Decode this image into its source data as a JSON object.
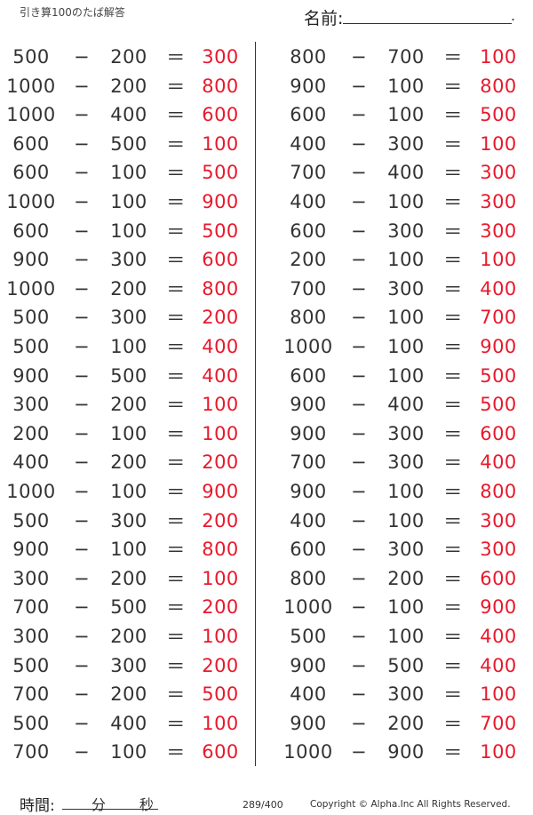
{
  "header": {
    "title": "引き算100のたば解答",
    "name_label": "名前:",
    "name_end": "."
  },
  "operator": "−",
  "equals": "＝",
  "left": [
    [
      "500",
      "200",
      "300"
    ],
    [
      "1000",
      "200",
      "800"
    ],
    [
      "1000",
      "400",
      "600"
    ],
    [
      "600",
      "500",
      "100"
    ],
    [
      "600",
      "100",
      "500"
    ],
    [
      "1000",
      "100",
      "900"
    ],
    [
      "600",
      "100",
      "500"
    ],
    [
      "900",
      "300",
      "600"
    ],
    [
      "1000",
      "200",
      "800"
    ],
    [
      "500",
      "300",
      "200"
    ],
    [
      "500",
      "100",
      "400"
    ],
    [
      "900",
      "500",
      "400"
    ],
    [
      "300",
      "200",
      "100"
    ],
    [
      "200",
      "100",
      "100"
    ],
    [
      "400",
      "200",
      "200"
    ],
    [
      "1000",
      "100",
      "900"
    ],
    [
      "500",
      "300",
      "200"
    ],
    [
      "900",
      "100",
      "800"
    ],
    [
      "300",
      "200",
      "100"
    ],
    [
      "700",
      "500",
      "200"
    ],
    [
      "300",
      "200",
      "100"
    ],
    [
      "500",
      "300",
      "200"
    ],
    [
      "700",
      "200",
      "500"
    ],
    [
      "500",
      "400",
      "100"
    ],
    [
      "700",
      "100",
      "600"
    ]
  ],
  "right": [
    [
      "800",
      "700",
      "100"
    ],
    [
      "900",
      "100",
      "800"
    ],
    [
      "600",
      "100",
      "500"
    ],
    [
      "400",
      "300",
      "100"
    ],
    [
      "700",
      "400",
      "300"
    ],
    [
      "400",
      "100",
      "300"
    ],
    [
      "600",
      "300",
      "300"
    ],
    [
      "200",
      "100",
      "100"
    ],
    [
      "700",
      "300",
      "400"
    ],
    [
      "800",
      "100",
      "700"
    ],
    [
      "1000",
      "100",
      "900"
    ],
    [
      "600",
      "100",
      "500"
    ],
    [
      "900",
      "400",
      "500"
    ],
    [
      "900",
      "300",
      "600"
    ],
    [
      "700",
      "300",
      "400"
    ],
    [
      "900",
      "100",
      "800"
    ],
    [
      "400",
      "100",
      "300"
    ],
    [
      "600",
      "300",
      "300"
    ],
    [
      "800",
      "200",
      "600"
    ],
    [
      "1000",
      "100",
      "900"
    ],
    [
      "500",
      "100",
      "400"
    ],
    [
      "900",
      "500",
      "400"
    ],
    [
      "400",
      "300",
      "100"
    ],
    [
      "900",
      "200",
      "700"
    ],
    [
      "1000",
      "900",
      "100"
    ]
  ],
  "footer": {
    "time_label": "時間:",
    "minutes": "分",
    "seconds": "秒",
    "page": "289/400",
    "copyright": "Copyright ©  Alpha.Inc All Rights Reserved."
  },
  "colors": {
    "answer": "#e8192c",
    "text": "#333333"
  }
}
